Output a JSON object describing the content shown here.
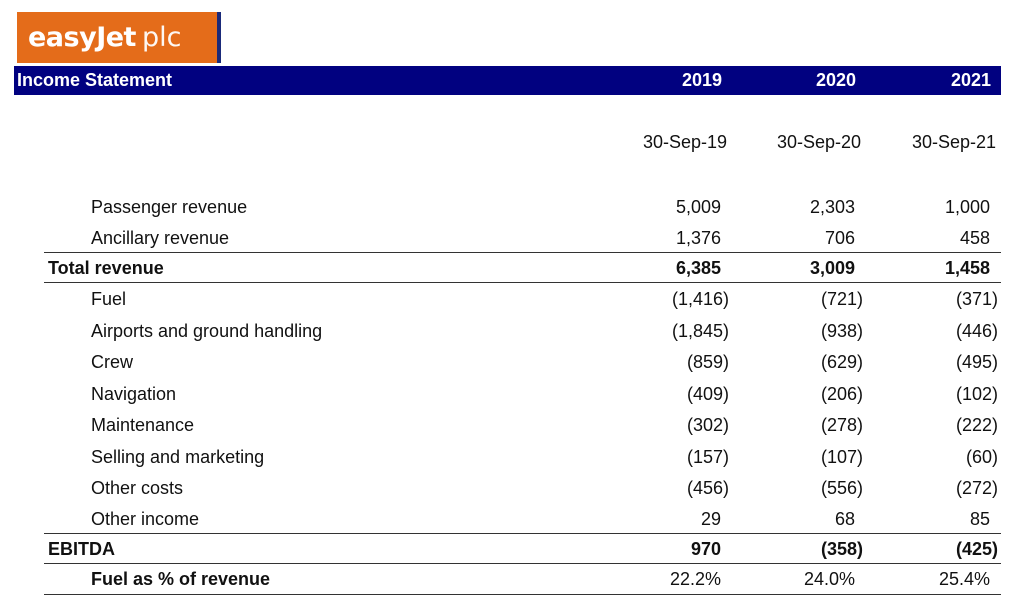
{
  "logo": {
    "brand": "easyJet",
    "suffix": "plc",
    "color": "#e46c1a"
  },
  "header": {
    "title": "Income Statement",
    "years": [
      "2019",
      "2020",
      "2021"
    ],
    "color": "#010180"
  },
  "dates": [
    "30-Sep-19",
    "30-Sep-20",
    "30-Sep-21"
  ],
  "rows": [
    {
      "label": "Passenger revenue",
      "values": [
        "5,009",
        "2,303",
        "1,000"
      ]
    },
    {
      "label": "Ancillary revenue",
      "values": [
        "1,376",
        "706",
        "458"
      ]
    },
    {
      "label": "Total revenue",
      "values": [
        "6,385",
        "3,009",
        "1,458"
      ]
    },
    {
      "label": "Fuel",
      "values": [
        "(1,416)",
        "(721)",
        "(371)"
      ]
    },
    {
      "label": "Airports and ground handling",
      "values": [
        "(1,845)",
        "(938)",
        "(446)"
      ]
    },
    {
      "label": "Crew",
      "values": [
        "(859)",
        "(629)",
        "(495)"
      ]
    },
    {
      "label": "Navigation",
      "values": [
        "(409)",
        "(206)",
        "(102)"
      ]
    },
    {
      "label": "Maintenance",
      "values": [
        "(302)",
        "(278)",
        "(222)"
      ]
    },
    {
      "label": "Selling and marketing",
      "values": [
        "(157)",
        "(107)",
        "(60)"
      ]
    },
    {
      "label": "Other costs",
      "values": [
        "(456)",
        "(556)",
        "(272)"
      ]
    },
    {
      "label": "Other income",
      "values": [
        "29",
        "68",
        "85"
      ]
    },
    {
      "label": "EBITDA",
      "values": [
        "970",
        "(358)",
        "(425)"
      ]
    },
    {
      "label": "Fuel as % of revenue",
      "values": [
        "22.2%",
        "24.0%",
        "25.4%"
      ]
    }
  ]
}
